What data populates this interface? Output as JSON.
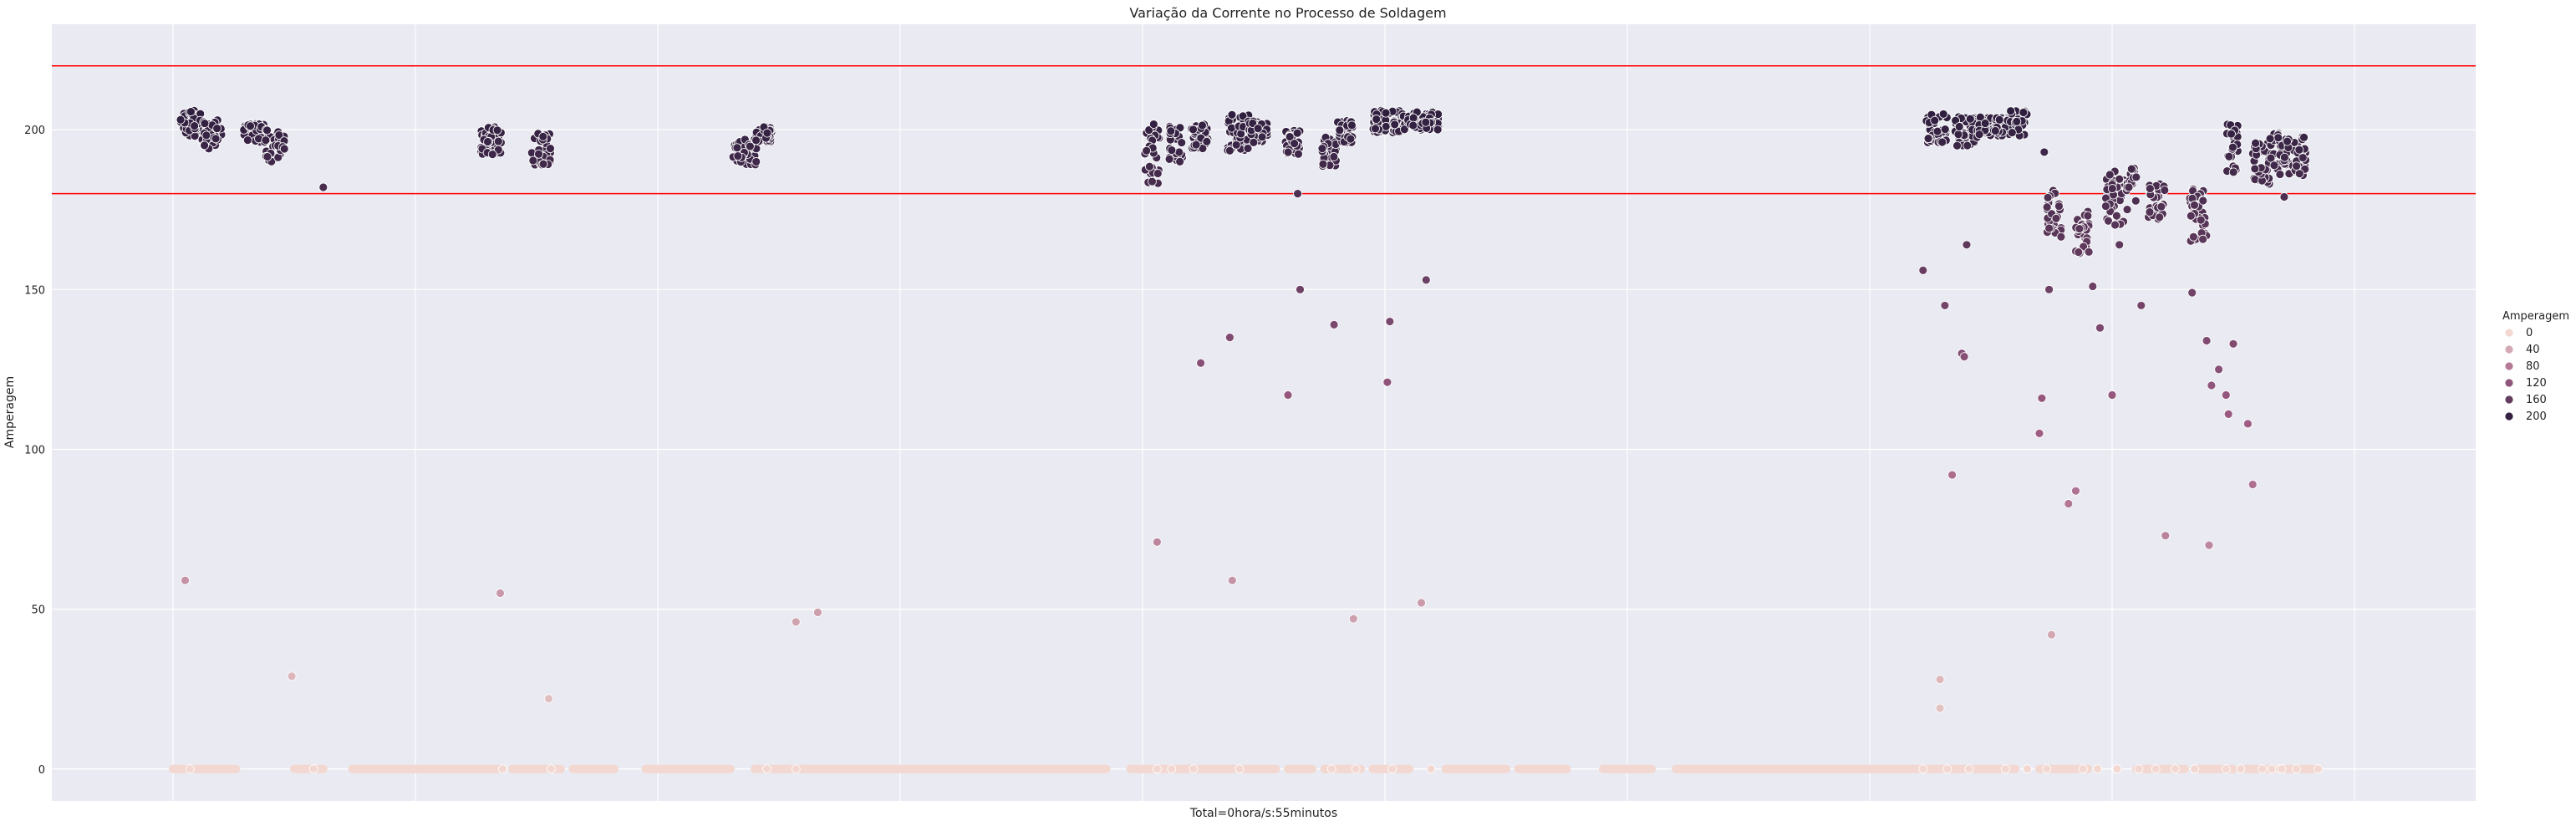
{
  "chart_data": {
    "type": "scatter",
    "title": "Variação da Corrente no Processo de Soldagem",
    "xlabel": "Total=0hora/s:55minutos",
    "ylabel": "Amperagem",
    "ylim": [
      -10,
      233
    ],
    "xlim": [
      0,
      1000
    ],
    "yticks": [
      0,
      50,
      100,
      150,
      200
    ],
    "xticks": [
      50,
      150,
      250,
      350,
      450,
      550,
      650,
      750,
      850,
      950
    ],
    "grid": true,
    "reference_lines": [
      220,
      180
    ],
    "reference_line_color": "#ff0000",
    "background_color": "#eaeaf2",
    "legend": {
      "title": "Amperagem",
      "placement": "right",
      "entries": [
        {
          "label": "0",
          "value": 0
        },
        {
          "label": "40",
          "value": 40
        },
        {
          "label": "80",
          "value": 80
        },
        {
          "label": "120",
          "value": 120
        },
        {
          "label": "160",
          "value": 160
        },
        {
          "label": "200",
          "value": 200
        }
      ]
    },
    "colormap": {
      "low": "#f2d8d0",
      "mid": "#a35f86",
      "high": "#2d1e3e"
    },
    "zero_runs": [
      [
        50,
        76
      ],
      [
        100,
        112
      ],
      [
        124,
        185
      ],
      [
        190,
        210
      ],
      [
        215,
        232
      ],
      [
        245,
        280
      ],
      [
        290,
        435
      ],
      [
        445,
        488
      ],
      [
        490,
        505
      ],
      [
        510,
        520
      ],
      [
        525,
        540
      ],
      [
        545,
        560
      ],
      [
        575,
        600
      ],
      [
        605,
        625
      ],
      [
        640,
        660
      ],
      [
        670,
        700
      ],
      [
        700,
        810
      ],
      [
        820,
        840
      ],
      [
        860,
        880
      ],
      [
        885,
        900
      ],
      [
        905,
        920
      ],
      [
        922,
        935
      ]
    ],
    "high_clusters": [
      {
        "x": [
          53,
          62
        ],
        "y": [
          198,
          206
        ]
      },
      {
        "x": [
          62,
          70
        ],
        "y": [
          194,
          203
        ]
      },
      {
        "x": [
          79,
          88
        ],
        "y": [
          196,
          202
        ]
      },
      {
        "x": [
          88,
          96
        ],
        "y": [
          190,
          200
        ]
      },
      {
        "x": [
          177,
          186
        ],
        "y": [
          192,
          201
        ]
      },
      {
        "x": [
          198,
          206
        ],
        "y": [
          189,
          199
        ]
      },
      {
        "x": [
          281,
          291
        ],
        "y": [
          189,
          197
        ]
      },
      {
        "x": [
          290,
          297
        ],
        "y": [
          196,
          201
        ]
      },
      {
        "x": [
          451,
          457
        ],
        "y": [
          183,
          203
        ]
      },
      {
        "x": [
          461,
          467
        ],
        "y": [
          190,
          202
        ]
      },
      {
        "x": [
          470,
          477
        ],
        "y": [
          194,
          202
        ]
      },
      {
        "x": [
          485,
          494
        ],
        "y": [
          193,
          205
        ]
      },
      {
        "x": [
          494,
          502
        ],
        "y": [
          196,
          203
        ]
      },
      {
        "x": [
          509,
          515
        ],
        "y": [
          192,
          200
        ]
      },
      {
        "x": [
          524,
          530
        ],
        "y": [
          188,
          198
        ]
      },
      {
        "x": [
          530,
          537
        ],
        "y": [
          196,
          203
        ]
      },
      {
        "x": [
          545,
          558
        ],
        "y": [
          199,
          206
        ]
      },
      {
        "x": [
          558,
          572
        ],
        "y": [
          200,
          206
        ]
      },
      {
        "x": [
          773,
          782
        ],
        "y": [
          196,
          205
        ]
      },
      {
        "x": [
          785,
          795
        ],
        "y": [
          195,
          204
        ]
      },
      {
        "x": [
          795,
          808
        ],
        "y": [
          198,
          204
        ]
      },
      {
        "x": [
          808,
          815
        ],
        "y": [
          198,
          207
        ]
      },
      {
        "x": [
          823,
          829
        ],
        "y": [
          165,
          181
        ]
      },
      {
        "x": [
          835,
          841
        ],
        "y": [
          160,
          175
        ]
      },
      {
        "x": [
          847,
          855
        ],
        "y": [
          170,
          187
        ]
      },
      {
        "x": [
          856,
          860
        ],
        "y": [
          175,
          188
        ]
      },
      {
        "x": [
          865,
          872
        ],
        "y": [
          172,
          183
        ]
      },
      {
        "x": [
          882,
          889
        ],
        "y": [
          165,
          182
        ]
      },
      {
        "x": [
          897,
          902
        ],
        "y": [
          186,
          202
        ]
      },
      {
        "x": [
          908,
          915
        ],
        "y": [
          183,
          196
        ]
      },
      {
        "x": [
          915,
          922
        ],
        "y": [
          186,
          199
        ]
      },
      {
        "x": [
          922,
          930
        ],
        "y": [
          185,
          199
        ]
      }
    ],
    "points": [
      {
        "x": 55,
        "y": 59
      },
      {
        "x": 57,
        "y": 0
      },
      {
        "x": 99,
        "y": 29
      },
      {
        "x": 108,
        "y": 0
      },
      {
        "x": 112,
        "y": 182
      },
      {
        "x": 185,
        "y": 55
      },
      {
        "x": 186,
        "y": 0
      },
      {
        "x": 205,
        "y": 22
      },
      {
        "x": 206,
        "y": 0
      },
      {
        "x": 295,
        "y": 0
      },
      {
        "x": 307,
        "y": 46
      },
      {
        "x": 307,
        "y": 0
      },
      {
        "x": 316,
        "y": 49
      },
      {
        "x": 456,
        "y": 71
      },
      {
        "x": 456,
        "y": 0
      },
      {
        "x": 462,
        "y": 0
      },
      {
        "x": 474,
        "y": 127
      },
      {
        "x": 486,
        "y": 135
      },
      {
        "x": 487,
        "y": 59
      },
      {
        "x": 471,
        "y": 0
      },
      {
        "x": 490,
        "y": 0
      },
      {
        "x": 510,
        "y": 117
      },
      {
        "x": 515,
        "y": 150
      },
      {
        "x": 514,
        "y": 180
      },
      {
        "x": 528,
        "y": 0
      },
      {
        "x": 529,
        "y": 139
      },
      {
        "x": 537,
        "y": 47
      },
      {
        "x": 538,
        "y": 0
      },
      {
        "x": 551,
        "y": 121
      },
      {
        "x": 552,
        "y": 140
      },
      {
        "x": 553,
        "y": 0
      },
      {
        "x": 565,
        "y": 52
      },
      {
        "x": 567,
        "y": 153
      },
      {
        "x": 569,
        "y": 0
      },
      {
        "x": 772,
        "y": 156
      },
      {
        "x": 772,
        "y": 0
      },
      {
        "x": 779,
        "y": 28
      },
      {
        "x": 779,
        "y": 19
      },
      {
        "x": 781,
        "y": 145
      },
      {
        "x": 782,
        "y": 0
      },
      {
        "x": 784,
        "y": 92
      },
      {
        "x": 788,
        "y": 130
      },
      {
        "x": 789,
        "y": 129
      },
      {
        "x": 790,
        "y": 164
      },
      {
        "x": 791,
        "y": 0
      },
      {
        "x": 806,
        "y": 0
      },
      {
        "x": 815,
        "y": 0
      },
      {
        "x": 820,
        "y": 105
      },
      {
        "x": 821,
        "y": 116
      },
      {
        "x": 822,
        "y": 193
      },
      {
        "x": 824,
        "y": 150
      },
      {
        "x": 825,
        "y": 42
      },
      {
        "x": 823,
        "y": 0
      },
      {
        "x": 832,
        "y": 83
      },
      {
        "x": 835,
        "y": 87
      },
      {
        "x": 838,
        "y": 0
      },
      {
        "x": 842,
        "y": 151
      },
      {
        "x": 845,
        "y": 138
      },
      {
        "x": 844,
        "y": 0
      },
      {
        "x": 850,
        "y": 117
      },
      {
        "x": 853,
        "y": 164
      },
      {
        "x": 852,
        "y": 0
      },
      {
        "x": 862,
        "y": 145
      },
      {
        "x": 861,
        "y": 0
      },
      {
        "x": 868,
        "y": 0
      },
      {
        "x": 872,
        "y": 73
      },
      {
        "x": 876,
        "y": 0
      },
      {
        "x": 883,
        "y": 149
      },
      {
        "x": 884,
        "y": 0
      },
      {
        "x": 889,
        "y": 134
      },
      {
        "x": 890,
        "y": 70
      },
      {
        "x": 891,
        "y": 120
      },
      {
        "x": 894,
        "y": 125
      },
      {
        "x": 897,
        "y": 117
      },
      {
        "x": 897,
        "y": 0
      },
      {
        "x": 898,
        "y": 111
      },
      {
        "x": 900,
        "y": 133
      },
      {
        "x": 903,
        "y": 0
      },
      {
        "x": 906,
        "y": 108
      },
      {
        "x": 908,
        "y": 89
      },
      {
        "x": 912,
        "y": 0
      },
      {
        "x": 916,
        "y": 0
      },
      {
        "x": 919,
        "y": 0
      },
      {
        "x": 921,
        "y": 179
      },
      {
        "x": 926,
        "y": 0
      },
      {
        "x": 935,
        "y": 0
      },
      {
        "x": 920,
        "y": 0
      }
    ]
  }
}
